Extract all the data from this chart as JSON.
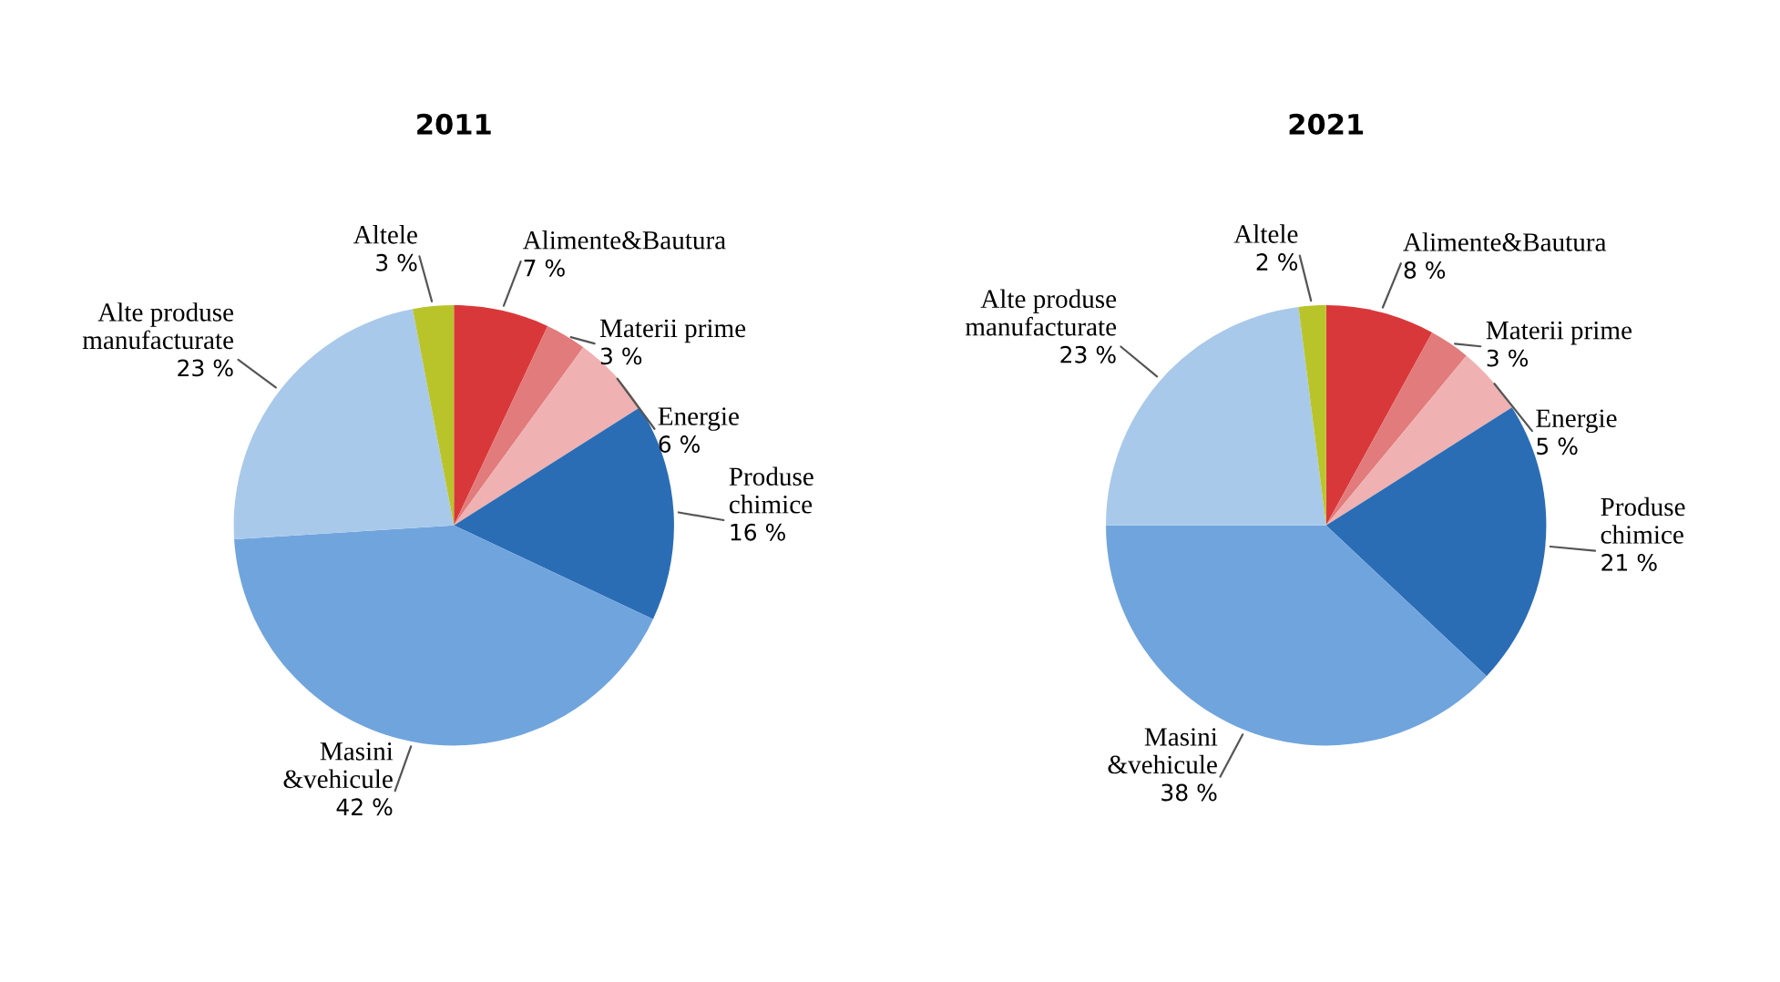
{
  "chart_data": [
    {
      "type": "pie",
      "title": "2011",
      "categories": [
        "Alimente&Bautura",
        "Materii prime",
        "Energie",
        "Produse\nchimice",
        "Masini\n&vehicule",
        "Alte produse\nmanufacturate",
        "Altele"
      ],
      "values": [
        7,
        3,
        6,
        16,
        42,
        23,
        3
      ],
      "value_labels": [
        "7 %",
        "3 %",
        "6 %",
        "16 %",
        "42 %",
        "23 %",
        "3 %"
      ],
      "colors": [
        "#d9383a",
        "#e27b7b",
        "#efb1b1",
        "#2a6db5",
        "#70a4dd",
        "#a9c9eb",
        "#b9c42b"
      ]
    },
    {
      "type": "pie",
      "title": "2021",
      "categories": [
        "Alimente&Bautura",
        "Materii prime",
        "Energie",
        "Produse\nchimice",
        "Masini\n&vehicule",
        "Alte produse\nmanufacturate",
        "Altele"
      ],
      "values": [
        8,
        3,
        5,
        21,
        38,
        23,
        2
      ],
      "value_labels": [
        "8 %",
        "3 %",
        "5 %",
        "21 %",
        "38 %",
        "23 %",
        "2 %"
      ],
      "colors": [
        "#d9383a",
        "#e27b7b",
        "#efb1b1",
        "#2a6db5",
        "#70a4dd",
        "#a9c9eb",
        "#b9c42b"
      ]
    }
  ]
}
